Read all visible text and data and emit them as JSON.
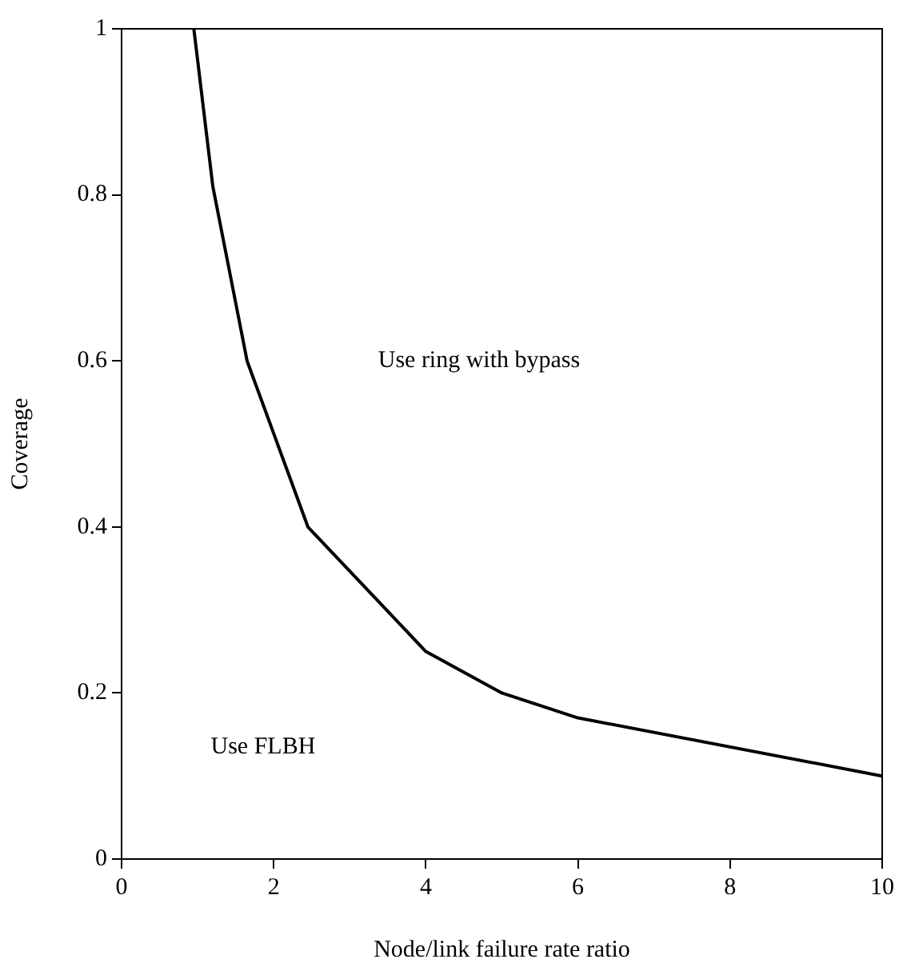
{
  "chart_data": {
    "type": "line",
    "xlabel": "Node/link failure rate ratio",
    "ylabel": "Coverage",
    "x": [
      0.95,
      1.2,
      1.65,
      2.45,
      4,
      5,
      6,
      10
    ],
    "series": [
      {
        "color": "#000000",
        "values": [
          1,
          0.81,
          0.6,
          0.4,
          0.25,
          0.2,
          0.17,
          0.1
        ]
      }
    ],
    "xlim": [
      0,
      10
    ],
    "xticks": [
      0,
      2,
      4,
      6,
      8,
      10
    ],
    "ylim": [
      0,
      1
    ],
    "yticks": [
      0,
      0.2,
      0.4,
      0.6,
      0.8,
      1
    ],
    "grid": false,
    "legend": false,
    "marker": "none",
    "line_style": "solid",
    "annotations": [
      "Use ring with bypass",
      "Use FLBH"
    ]
  }
}
